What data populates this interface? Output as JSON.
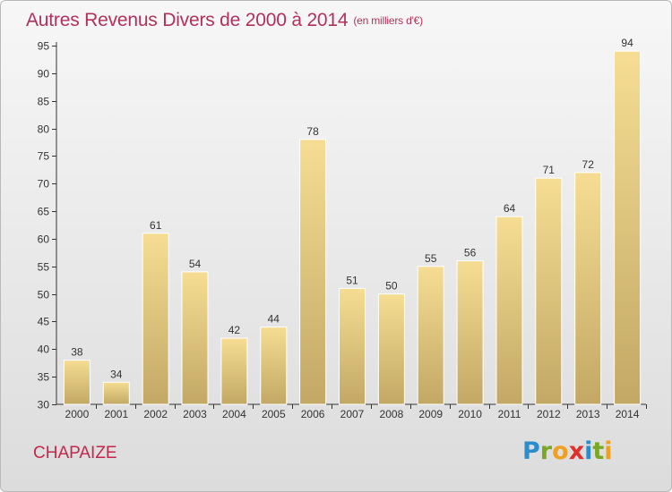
{
  "title": "Autres Revenus Divers de 2000 à 2014",
  "subtitle": "(en milliers d'€)",
  "commune": "CHAPAIZE",
  "logo": {
    "letters": [
      "P",
      "r",
      "o",
      "x",
      "i",
      "t",
      "i"
    ],
    "colors": [
      "#2c8ccc",
      "#7aa826",
      "#f0a020",
      "#e0302c",
      "#2c8ccc",
      "#7aa826",
      "#f0a020"
    ]
  },
  "colors": {
    "title": "#b0325a",
    "bar_light": "#f6dd93",
    "bar_dark": "#c2a864",
    "axis": "#333333"
  },
  "chart_data": {
    "type": "bar",
    "title": "Autres Revenus Divers de 2000 à 2014",
    "subtitle": "(en milliers d'€)",
    "categories": [
      "2000",
      "2001",
      "2002",
      "2003",
      "2004",
      "2005",
      "2006",
      "2007",
      "2008",
      "2009",
      "2010",
      "2011",
      "2012",
      "2013",
      "2014"
    ],
    "values": [
      38,
      34,
      61,
      54,
      42,
      44,
      78,
      51,
      50,
      55,
      56,
      64,
      71,
      72,
      94
    ],
    "ylim": [
      30,
      95
    ],
    "yticks": [
      30,
      35,
      40,
      45,
      50,
      55,
      60,
      65,
      70,
      75,
      80,
      85,
      90,
      95
    ],
    "grid": false,
    "data_labels": true
  }
}
